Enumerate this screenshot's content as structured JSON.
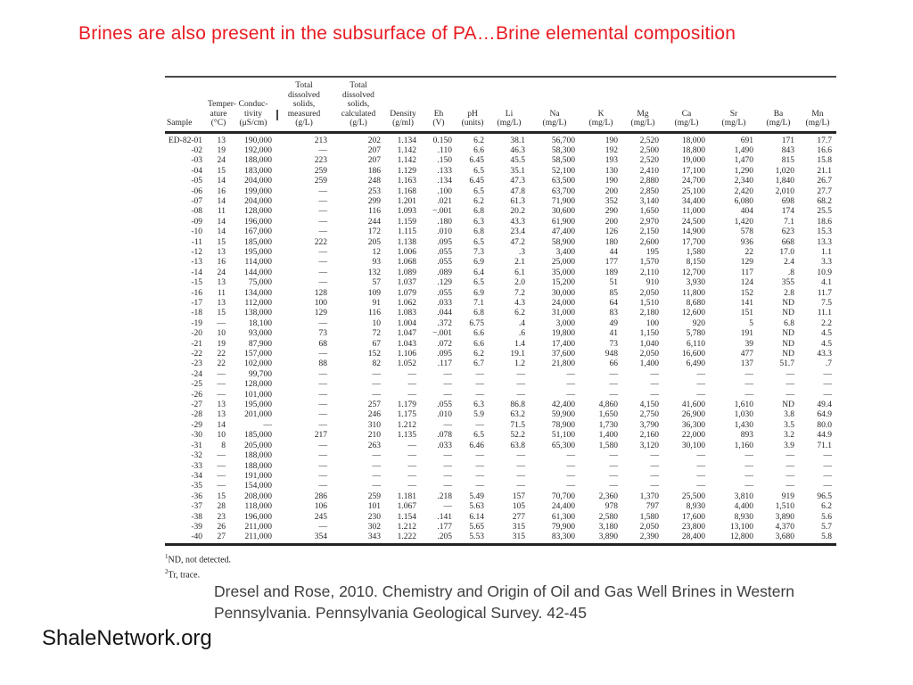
{
  "slide": {
    "title": "Brines are also present in the subsurface of PA…Brine elemental composition",
    "title_color": "#e81b22",
    "citation": "Dresel and Rose, 2010. Chemistry and Origin of Oil and Gas Well Brines in Western Pennsylvania. Pennsylvania Geological Survey. 42-45",
    "footer": "ShaleNetwork.org"
  },
  "chart_data": {
    "type": "table",
    "columns": [
      "Sample",
      "Temper-\nature\n(°C)",
      "Conduc-\ntivity\n(μS/cm)",
      "Total\ndissolved\nsolids,\nmeasured\n(g/L)",
      "Total\ndissolved\nsolids,\ncalculated\n(g/L)",
      "Density\n(g/ml)",
      "Eh\n(V)",
      "pH\n(units)",
      "Li\n(mg/L)",
      "Na\n(mg/L)",
      "K\n(mg/L)",
      "Mg\n(mg/L)",
      "Ca\n(mg/L)",
      "Sr\n(mg/L)",
      "Ba\n(mg/L)",
      "Mn\n(mg/L)"
    ],
    "rows": [
      [
        "ED-82-01",
        "13",
        "190,000",
        "213",
        "202",
        "1.134",
        "0.150",
        "6.2",
        "38.1",
        "56,700",
        "190",
        "2,520",
        "18,000",
        "691",
        "171",
        "17.7"
      ],
      [
        "-02",
        "19",
        "192,000",
        "—",
        "207",
        "1.142",
        ".110",
        "6.6",
        "46.3",
        "58,300",
        "192",
        "2,500",
        "18,800",
        "1,490",
        "843",
        "16.6"
      ],
      [
        "-03",
        "24",
        "188,000",
        "223",
        "207",
        "1.142",
        ".150",
        "6.45",
        "45.5",
        "58,500",
        "193",
        "2,520",
        "19,000",
        "1,470",
        "815",
        "15.8"
      ],
      [
        "-04",
        "15",
        "183,000",
        "259",
        "186",
        "1.129",
        ".133",
        "6.5",
        "35.1",
        "52,100",
        "130",
        "2,410",
        "17,100",
        "1,290",
        "1,020",
        "21.1"
      ],
      [
        "-05",
        "14",
        "204,000",
        "259",
        "248",
        "1.163",
        ".134",
        "6.45",
        "47.3",
        "63,500",
        "190",
        "2,880",
        "24,700",
        "2,340",
        "1,840",
        "26.7"
      ],
      [
        "-06",
        "16",
        "199,000",
        "—",
        "253",
        "1.168",
        ".100",
        "6.5",
        "47.8",
        "63,700",
        "200",
        "2,850",
        "25,100",
        "2,420",
        "2,010",
        "27.7"
      ],
      [
        "-07",
        "14",
        "204,000",
        "—",
        "299",
        "1.201",
        ".021",
        "6.2",
        "61.3",
        "71,900",
        "352",
        "3,140",
        "34,400",
        "6,080",
        "698",
        "68.2"
      ],
      [
        "-08",
        "11",
        "128,000",
        "—",
        "116",
        "1.093",
        "−.001",
        "6.8",
        "20.2",
        "30,600",
        "290",
        "1,650",
        "11,000",
        "404",
        "174",
        "25.5"
      ],
      [
        "-09",
        "14",
        "196,000",
        "—",
        "244",
        "1.159",
        ".180",
        "6.3",
        "43.3",
        "61,900",
        "200",
        "2,970",
        "24,500",
        "1,420",
        "7.1",
        "18.6"
      ],
      [
        "-10",
        "14",
        "167,000",
        "—",
        "172",
        "1.115",
        ".010",
        "6.8",
        "23.4",
        "47,400",
        "126",
        "2,150",
        "14,900",
        "578",
        "623",
        "15.3"
      ],
      [
        "-11",
        "15",
        "185,000",
        "222",
        "205",
        "1.138",
        ".095",
        "6.5",
        "47.2",
        "58,900",
        "180",
        "2,600",
        "17,700",
        "936",
        "668",
        "13.3"
      ],
      [
        "-12",
        "13",
        "195,000",
        "—",
        "12",
        "1.006",
        ".055",
        "7.3",
        ".3",
        "3,400",
        "44",
        "195",
        "1,580",
        "22",
        "17.0",
        "1.1"
      ],
      [
        "-13",
        "16",
        "114,000",
        "—",
        "93",
        "1.068",
        ".055",
        "6.9",
        "2.1",
        "25,000",
        "177",
        "1,570",
        "8,150",
        "129",
        "2.4",
        "3.3"
      ],
      [
        "-14",
        "24",
        "144,000",
        "—",
        "132",
        "1.089",
        ".089",
        "6.4",
        "6.1",
        "35,000",
        "189",
        "2,110",
        "12,700",
        "117",
        ".8",
        "10.9"
      ],
      [
        "-15",
        "13",
        "75,000",
        "—",
        "57",
        "1.037",
        ".129",
        "6.5",
        "2.0",
        "15,200",
        "51",
        "910",
        "3,930",
        "124",
        "355",
        "4.1"
      ],
      [
        "-16",
        "11",
        "134,000",
        "128",
        "109",
        "1.079",
        ".055",
        "6.9",
        "7.2",
        "30,000",
        "85",
        "2,050",
        "11,800",
        "152",
        "2.8",
        "11.7"
      ],
      [
        "-17",
        "13",
        "112,000",
        "100",
        "91",
        "1.062",
        ".033",
        "7.1",
        "4.3",
        "24,000",
        "64",
        "1,510",
        "8,680",
        "141",
        "ND",
        "7.5"
      ],
      [
        "-18",
        "15",
        "138,000",
        "129",
        "116",
        "1.083",
        ".044",
        "6.8",
        "6.2",
        "31,000",
        "83",
        "2,180",
        "12,600",
        "151",
        "ND",
        "11.1"
      ],
      [
        "-19",
        "—",
        "18,100",
        "—",
        "10",
        "1.004",
        ".372",
        "6.75",
        ".4",
        "3,000",
        "49",
        "100",
        "920",
        "5",
        "6.8",
        "2.2"
      ],
      [
        "-20",
        "10",
        "93,000",
        "73",
        "72",
        "1.047",
        "−.001",
        "6.6",
        ".6",
        "19,800",
        "41",
        "1,150",
        "5,780",
        "191",
        "ND",
        "4.5"
      ],
      [
        "-21",
        "19",
        "87,900",
        "68",
        "67",
        "1.043",
        ".072",
        "6.6",
        "1.4",
        "17,400",
        "73",
        "1,040",
        "6,110",
        "39",
        "ND",
        "4.5"
      ],
      [
        "-22",
        "22",
        "157,000",
        "—",
        "152",
        "1.106",
        ".095",
        "6.2",
        "19.1",
        "37,600",
        "948",
        "2,050",
        "16,600",
        "477",
        "ND",
        "43.3"
      ],
      [
        "-23",
        "22",
        "102,000",
        "88",
        "82",
        "1.052",
        ".117",
        "6.7",
        "1.2",
        "21,800",
        "66",
        "1,400",
        "6,490",
        "137",
        "51.7",
        ".7"
      ],
      [
        "-24",
        "—",
        "99,700",
        "—",
        "—",
        "—",
        "—",
        "—",
        "—",
        "—",
        "—",
        "—",
        "—",
        "—",
        "—",
        "—"
      ],
      [
        "-25",
        "—",
        "128,000",
        "—",
        "—",
        "—",
        "—",
        "—",
        "—",
        "—",
        "—",
        "—",
        "—",
        "—",
        "—",
        "—"
      ],
      [
        "-26",
        "—",
        "101,000",
        "—",
        "—",
        "—",
        "—",
        "—",
        "—",
        "—",
        "—",
        "—",
        "—",
        "—",
        "—",
        "—"
      ],
      [
        "-27",
        "13",
        "195,000",
        "—",
        "257",
        "1.179",
        ".055",
        "6.3",
        "86.8",
        "42,400",
        "4,860",
        "4,150",
        "41,600",
        "1,610",
        "ND",
        "49.4"
      ],
      [
        "-28",
        "13",
        "201,000",
        "—",
        "246",
        "1.175",
        ".010",
        "5.9",
        "63.2",
        "59,900",
        "1,650",
        "2,750",
        "26,900",
        "1,030",
        "3.8",
        "64.9"
      ],
      [
        "-29",
        "14",
        "—",
        "—",
        "310",
        "1.212",
        "—",
        "—",
        "71.5",
        "78,900",
        "1,730",
        "3,790",
        "36,300",
        "1,430",
        "3.5",
        "80.0"
      ],
      [
        "-30",
        "10",
        "185,000",
        "217",
        "210",
        "1.135",
        ".078",
        "6.5",
        "52.2",
        "51,100",
        "1,400",
        "2,160",
        "22,000",
        "893",
        "3.2",
        "44.9"
      ],
      [
        "-31",
        "8",
        "205,000",
        "—",
        "263",
        "—",
        ".033",
        "6.46",
        "63.8",
        "65,300",
        "1,580",
        "3,120",
        "30,100",
        "1,160",
        "3.9",
        "71.1"
      ],
      [
        "-32",
        "—",
        "188,000",
        "—",
        "—",
        "—",
        "—",
        "—",
        "—",
        "—",
        "—",
        "—",
        "—",
        "—",
        "—",
        "—"
      ],
      [
        "-33",
        "—",
        "188,000",
        "—",
        "—",
        "—",
        "—",
        "—",
        "—",
        "—",
        "—",
        "—",
        "—",
        "—",
        "—",
        "—"
      ],
      [
        "-34",
        "—",
        "191,000",
        "—",
        "—",
        "—",
        "—",
        "—",
        "—",
        "—",
        "—",
        "—",
        "—",
        "—",
        "—",
        "—"
      ],
      [
        "-35",
        "—",
        "154,000",
        "—",
        "—",
        "—",
        "—",
        "—",
        "—",
        "—",
        "—",
        "—",
        "—",
        "—",
        "—",
        "—"
      ],
      [
        "-36",
        "15",
        "208,000",
        "286",
        "259",
        "1.181",
        ".218",
        "5.49",
        "157",
        "70,700",
        "2,360",
        "1,370",
        "25,500",
        "3,810",
        "919",
        "96.5"
      ],
      [
        "-37",
        "28",
        "118,000",
        "106",
        "101",
        "1.067",
        "—",
        "5.63",
        "105",
        "24,400",
        "978",
        "797",
        "8,930",
        "4,400",
        "1,510",
        "6.2"
      ],
      [
        "-38",
        "23",
        "196,000",
        "245",
        "230",
        "1.154",
        ".141",
        "6.14",
        "277",
        "61,300",
        "2,580",
        "1,580",
        "17,600",
        "8,930",
        "3,890",
        "5.6"
      ],
      [
        "-39",
        "26",
        "211,000",
        "—",
        "302",
        "1.212",
        ".177",
        "5.65",
        "315",
        "79,900",
        "3,180",
        "2,050",
        "23,800",
        "13,100",
        "4,370",
        "5.7"
      ],
      [
        "-40",
        "27",
        "211,000",
        "354",
        "343",
        "1.222",
        ".205",
        "5.53",
        "315",
        "83,300",
        "3,890",
        "2,390",
        "28,400",
        "12,800",
        "3,680",
        "5.8"
      ]
    ],
    "footnotes": [
      {
        "marker": "1",
        "text": "ND, not detected."
      },
      {
        "marker": "2",
        "text": "Tr, trace."
      }
    ]
  }
}
